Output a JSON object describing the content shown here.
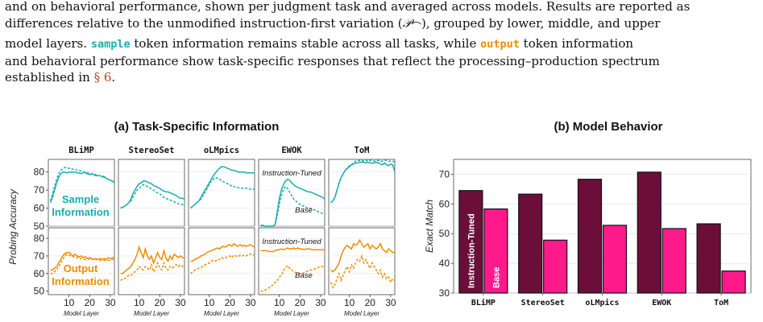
{
  "caption": {
    "line1": "and on behavioral performance, shown per judgment task and averaged across models. Results are reported as",
    "line2_pre": "differences relative to the unmodified instruction-first variation (",
    "line2_math": "𝒫",
    "line2_sub": "⌒",
    "line2_post": "), grouped by lower, middle, and upper",
    "line3_pre": "model layers.",
    "line3_sample": "sample",
    "line3_mid": "token information remains stable across all tasks, while",
    "line3_output": "output",
    "line3_post": "token information",
    "line4": "and behavioral performance show task-specific responses that reflect the processing–production spectrum",
    "line5_pre": "established in",
    "line5_ref": "§ 6",
    "line5_post": "."
  },
  "colors": {
    "teal": "#1aaeae",
    "orange": "#f08c00",
    "instruction_tuned": "#6b0f3a",
    "base": "#ff1a8c"
  },
  "chart_data": [
    {
      "type": "line",
      "title": "(a) Task-Specific Information",
      "ylabel": "Probing Accuracy",
      "xlabel": "Model Layer",
      "xlim": [
        0,
        32
      ],
      "xticks": [
        "10",
        "20",
        "30"
      ],
      "tasks": [
        "BLiMP",
        "StereoSet",
        "oLMpics",
        "EWOK",
        "ToM"
      ],
      "rows": [
        {
          "name": "Sample Information",
          "label": "Sample\nInformation",
          "label_lines": [
            "Sample",
            "Information"
          ],
          "color": "#1aaeae",
          "ylim": [
            50,
            87
          ],
          "yticks": [
            50,
            60,
            70,
            80
          ],
          "series": {
            "BLiMP": {
              "instruction_tuned": [
                63,
                66,
                70,
                74,
                77,
                79,
                80,
                80,
                79.5,
                80,
                80,
                80,
                80,
                79.5,
                79.5,
                79,
                80,
                79.5,
                79,
                78.5,
                79,
                78.5,
                78,
                78,
                78,
                77.5,
                77.5,
                76.5,
                76,
                75.5,
                75,
                74
              ],
              "base": [
                64,
                68,
                72,
                76,
                79,
                81,
                82,
                82.5,
                82.5,
                82,
                82,
                81.5,
                81.5,
                81,
                81,
                80.5,
                80,
                80,
                79.5,
                79.5,
                79,
                79,
                78.5,
                78,
                78,
                77.5,
                77,
                76.5,
                76,
                75.5,
                75,
                74.5
              ]
            },
            "StereoSet": {
              "instruction_tuned": [
                60,
                60.5,
                61,
                62,
                63,
                65,
                68,
                70,
                72,
                73.5,
                74,
                75,
                75,
                74.5,
                74,
                73.5,
                72.5,
                72,
                71.5,
                71,
                70,
                69.5,
                69,
                69,
                68.5,
                68,
                67.5,
                67,
                66,
                65.5,
                65.5,
                65
              ],
              "base": [
                60,
                60.5,
                61,
                62,
                63,
                64,
                66,
                68,
                70,
                71,
                72,
                73,
                72.5,
                72,
                71.5,
                70.5,
                70,
                69,
                68.5,
                68,
                67,
                66,
                65.5,
                65,
                64.5,
                64,
                63.5,
                63,
                62.5,
                62,
                62,
                61.5
              ]
            },
            "oLMpics": {
              "instruction_tuned": [
                60,
                61,
                62,
                63,
                64,
                66,
                68,
                70,
                72,
                74,
                76,
                78,
                79.5,
                81,
                82,
                83,
                83,
                82.5,
                82,
                81.5,
                81,
                81,
                80.5,
                80,
                80,
                80,
                80,
                79.5,
                79.5,
                79.5,
                79.5,
                79.5
              ],
              "base": [
                60,
                61,
                62,
                63,
                64,
                65,
                67,
                69,
                71,
                73,
                75,
                76,
                77,
                76.5,
                76,
                75.5,
                74.5,
                74,
                73.5,
                73,
                72,
                72,
                71.5,
                71.5,
                71,
                71,
                71,
                71,
                71,
                70.5,
                70.5,
                70.5
              ]
            },
            "EWOK": {
              "instruction_tuned": [
                50.5,
                50.5,
                50,
                50,
                50,
                50,
                50,
                51,
                58,
                65,
                70,
                73,
                75,
                76,
                75.5,
                74,
                73,
                72,
                71.5,
                71,
                70.5,
                70,
                69.5,
                69,
                69,
                68.5,
                68,
                67.5,
                67,
                66.5,
                66,
                65
              ],
              "base": [
                50.5,
                50.5,
                50,
                50,
                50,
                50,
                50,
                51,
                56,
                62,
                67,
                70,
                72,
                71,
                69,
                67,
                65,
                64,
                63,
                62,
                61.5,
                61,
                60.5,
                60,
                60,
                59.5,
                59,
                58.5,
                58,
                57.5,
                57,
                57
              ]
            },
            "ToM": {
              "instruction_tuned": [
                63,
                64,
                66,
                70,
                74,
                77,
                79,
                81,
                82,
                83,
                84,
                84.5,
                85,
                85,
                85.5,
                85.5,
                85.5,
                85,
                85.5,
                85,
                85,
                85,
                85.5,
                85,
                84.5,
                84,
                85,
                84,
                83.5,
                84.5,
                84,
                80
              ],
              "base": [
                63,
                64,
                66,
                70,
                74,
                77,
                79,
                81,
                82.5,
                83.5,
                84,
                85,
                86,
                86,
                86.5,
                86.5,
                86,
                86.5,
                86,
                86.5,
                86.5,
                86,
                86,
                86.5,
                86,
                86,
                86.5,
                86.5,
                86,
                86,
                86,
                85.5
              ]
            }
          }
        },
        {
          "name": "Output Information",
          "label": "Output\nInformation",
          "label_lines": [
            "Output",
            "Information"
          ],
          "color": "#f08c00",
          "ylim": [
            48,
            86
          ],
          "yticks": [
            50,
            60,
            70,
            80
          ],
          "series": {
            "BLiMP": {
              "instruction_tuned": [
                62,
                62,
                63,
                64,
                66,
                68,
                70,
                71.5,
                72,
                72,
                71,
                70,
                71,
                70,
                69.5,
                70,
                69,
                69.5,
                68.5,
                69,
                68.5,
                68,
                68.5,
                68,
                68.5,
                68,
                68.5,
                68,
                69,
                68.5,
                69,
                69
              ],
              "base": [
                60,
                60,
                61,
                62,
                64,
                66,
                68,
                70,
                71,
                70.5,
                70,
                69.5,
                69.5,
                69,
                68.5,
                68.5,
                68,
                68,
                68.5,
                68,
                68,
                68,
                68,
                68,
                67.5,
                67.5,
                67.5,
                67.5,
                67.5,
                67.5,
                68,
                68
              ]
            },
            "StereoSet": {
              "instruction_tuned": [
                60,
                60,
                61,
                62,
                63,
                64,
                66,
                68,
                71,
                75,
                72,
                69,
                74,
                70,
                68,
                70,
                66,
                69,
                72,
                69,
                68,
                73,
                69,
                67,
                70,
                68,
                71,
                70,
                69,
                70,
                69,
                69
              ],
              "base": [
                56,
                57,
                57,
                58,
                59,
                59,
                60,
                61,
                62,
                64,
                63,
                62,
                64,
                63,
                62,
                65,
                61,
                63,
                66,
                63,
                62,
                66,
                63,
                62,
                64,
                63,
                64,
                65,
                64,
                65,
                64,
                64
              ]
            },
            "oLMpics": {
              "instruction_tuned": [
                67,
                67,
                68,
                68.5,
                69,
                70,
                70.5,
                71,
                72,
                72.5,
                73,
                73.5,
                74,
                74.5,
                74,
                75,
                75.5,
                75,
                76,
                76.5,
                75.5,
                77,
                76,
                75.5,
                76.5,
                75.5,
                76,
                75.5,
                76,
                76.5,
                75.5,
                75
              ],
              "base": [
                60,
                61,
                62,
                62.5,
                63,
                63.5,
                64,
                65,
                65.5,
                66,
                67,
                67.5,
                67,
                68,
                68,
                69,
                68.5,
                69,
                69.5,
                70,
                69,
                70.5,
                70,
                69.5,
                70.5,
                70,
                70.5,
                70,
                71,
                71,
                70.5,
                70.5
              ]
            },
            "EWOK": {
              "instruction_tuned": [
                73,
                73,
                73,
                73,
                72.5,
                72.5,
                72.5,
                73,
                73.5,
                73.5,
                74,
                73.5,
                74,
                74.5,
                74,
                74,
                74.5,
                74,
                74.5,
                74,
                74,
                73.5,
                74,
                74,
                74,
                73.5,
                73.5,
                73.5,
                73.5,
                73.5,
                73.5,
                73.5
              ],
              "base": [
                50,
                50,
                50.5,
                51,
                52,
                53,
                53.5,
                55,
                56,
                58,
                59,
                62,
                63,
                64.5,
                63,
                62,
                61,
                60.5,
                60,
                60,
                60,
                60.5,
                61,
                61.5,
                62,
                62,
                62.5,
                63,
                63.5,
                64,
                64,
                64.5
              ]
            },
            "ToM": {
              "instruction_tuned": [
                62,
                61,
                62,
                64,
                66,
                70,
                73,
                75,
                76,
                75,
                74,
                77,
                76,
                77,
                79,
                77,
                75,
                76,
                77,
                74,
                76,
                75,
                74,
                75,
                77,
                74,
                73,
                72,
                74,
                73,
                72,
                72
              ],
              "base": [
                55,
                52,
                54,
                57,
                60,
                56,
                59,
                62,
                64,
                61,
                65,
                63,
                66,
                68,
                67,
                70,
                66,
                68,
                65,
                63,
                66,
                64,
                62,
                60,
                62,
                58,
                60,
                57,
                58,
                55,
                57,
                56
              ]
            }
          }
        }
      ],
      "annotations": {
        "instruction_tuned": "Instruction-Tuned",
        "base": "Base"
      }
    },
    {
      "type": "bar",
      "title": "(b) Model Behavior",
      "ylabel": "Exact Match",
      "ylim": [
        30,
        75
      ],
      "yticks": [
        30,
        40,
        50,
        60,
        70
      ],
      "categories": [
        "BLiMP",
        "StereoSet",
        "oLMpics",
        "EWOK",
        "ToM"
      ],
      "series": [
        {
          "name": "Instruction-Tuned",
          "color": "#6b0f3a",
          "values": [
            64.5,
            63.3,
            68.3,
            70.7,
            53.3
          ]
        },
        {
          "name": "Base",
          "color": "#ff1a8c",
          "values": [
            58.3,
            47.8,
            52.8,
            51.7,
            37.4
          ]
        }
      ]
    }
  ]
}
